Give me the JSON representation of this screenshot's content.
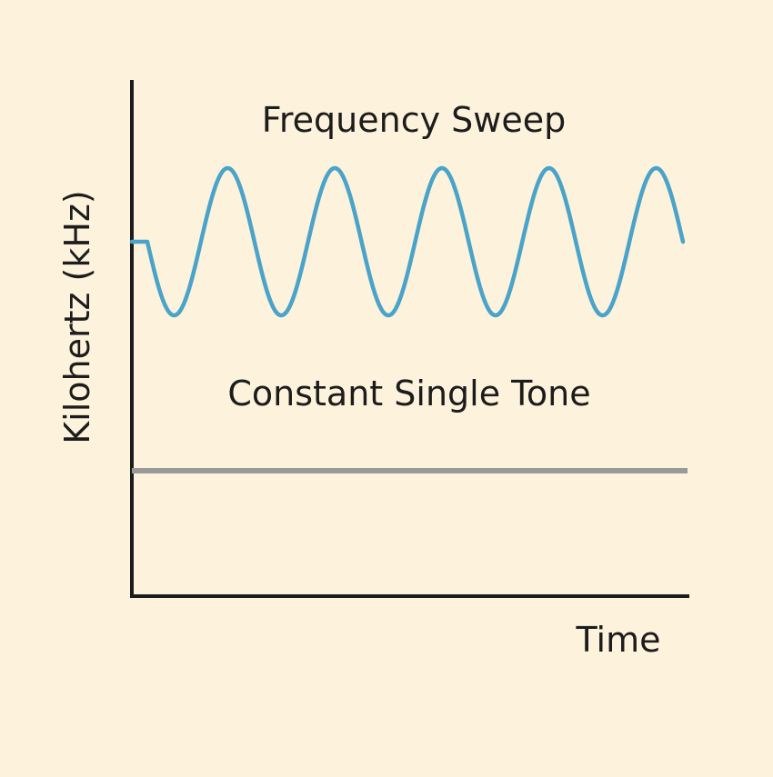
{
  "chart_data": {
    "type": "line",
    "xlabel": "Time",
    "ylabel": "Kilohertz (kHz)",
    "grid": false,
    "series": [
      {
        "name": "Frequency Sweep",
        "shape": "sine",
        "flat_lead_in": true,
        "cycles": 5,
        "color": "#4aa3c8"
      },
      {
        "name": "Constant Single Tone",
        "shape": "constant",
        "color": "#999999"
      }
    ]
  },
  "colors": {
    "background": "#fdf2dc",
    "axis": "#1c1c1c",
    "sweep": "#4aa3c8",
    "tone": "#999999"
  }
}
